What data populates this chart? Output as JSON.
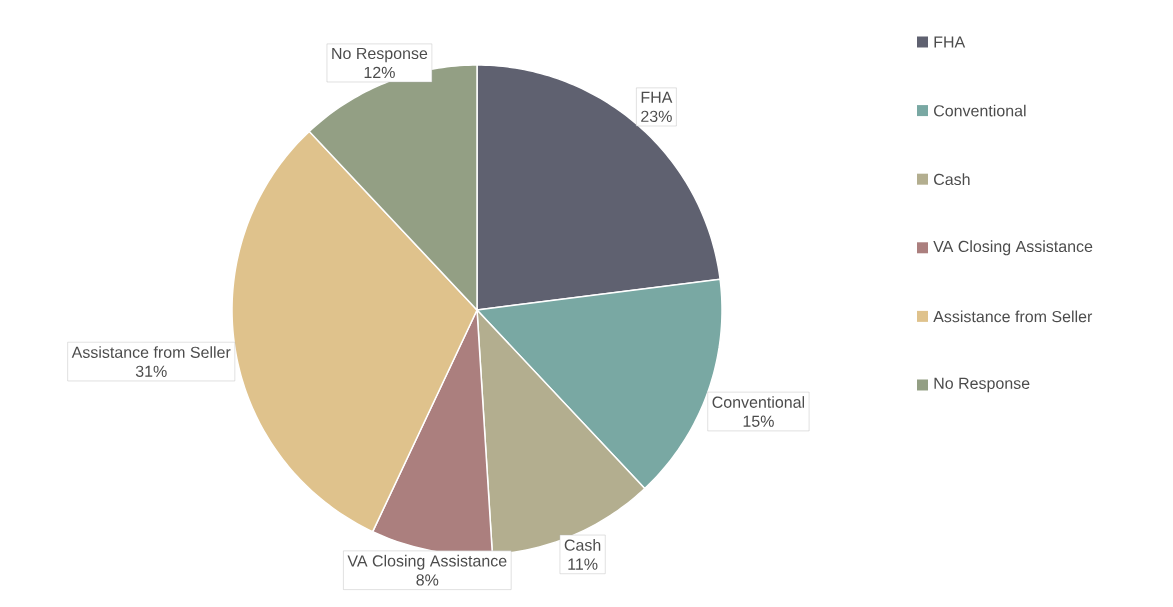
{
  "chart_data": {
    "type": "pie",
    "categories": [
      "FHA",
      "Conventional",
      "Cash",
      "VA Closing Assistance",
      "Assistance from Seller",
      "No Response"
    ],
    "values": [
      23,
      15,
      11,
      8,
      31,
      12
    ],
    "colors": [
      "#5f6170",
      "#79a8a3",
      "#b3ae8f",
      "#ab7f7e",
      "#dfc28c",
      "#939f84"
    ],
    "value_labels": [
      "23%",
      "15%",
      "11%",
      "8%",
      "31%",
      "12%"
    ],
    "legend": "right"
  }
}
